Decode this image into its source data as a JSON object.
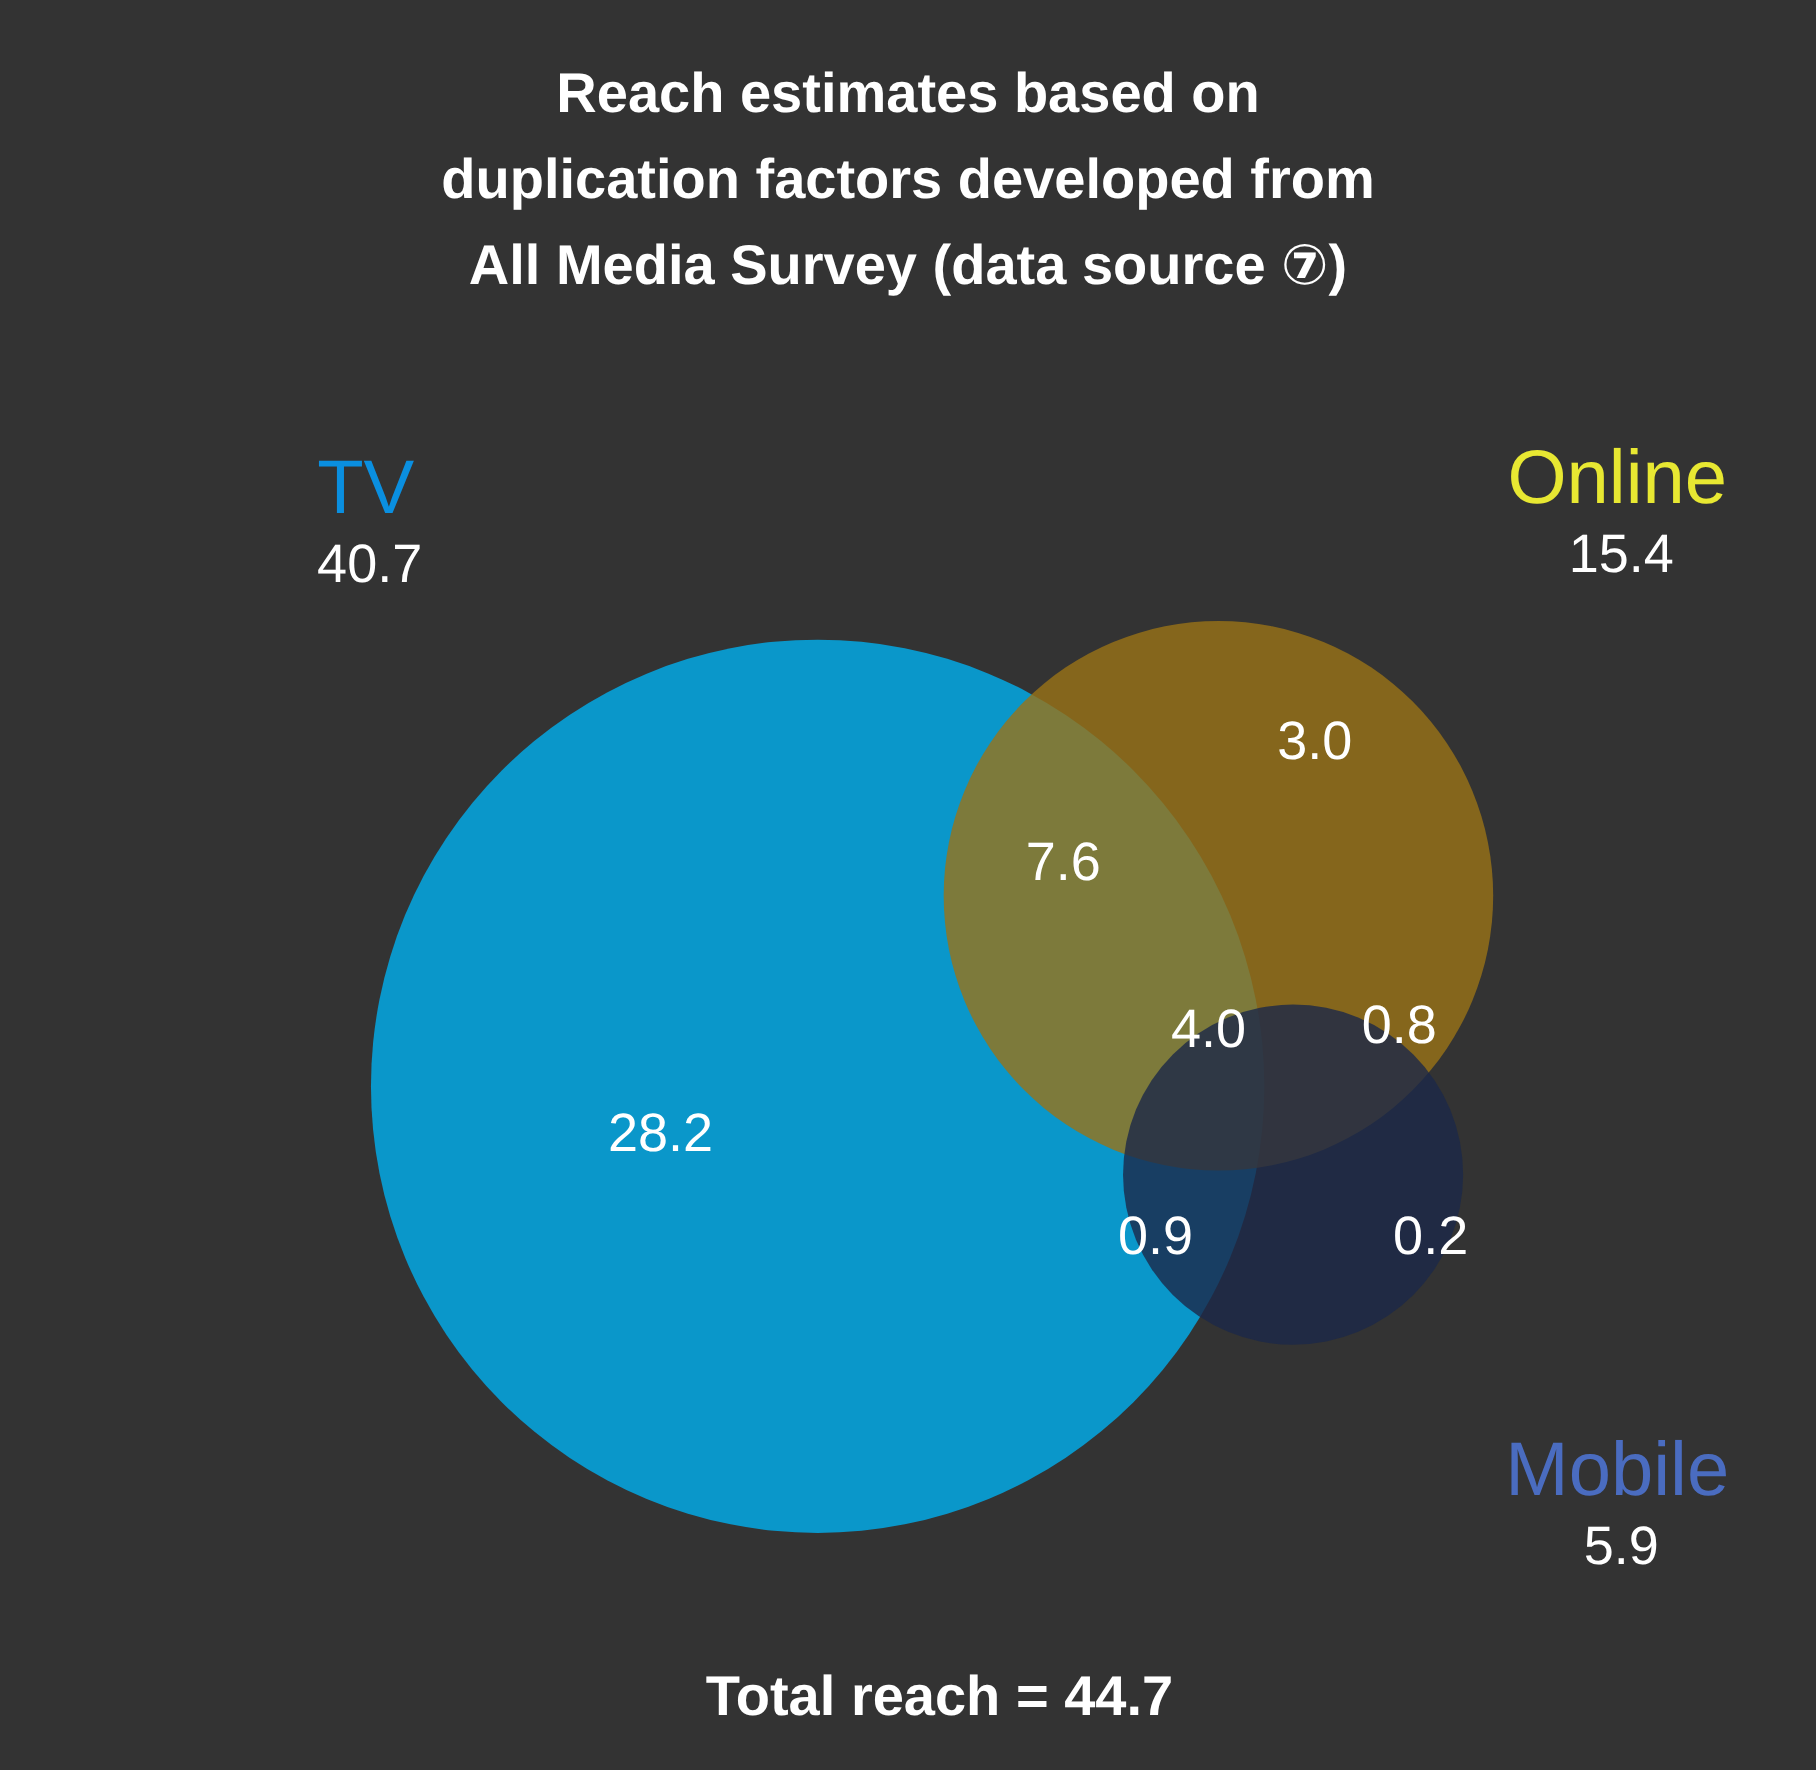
{
  "chart_data": {
    "type": "other",
    "title": "Reach estimates based on\nduplication factors developed from\nAll Media Survey (data source ⑦)",
    "categories": [
      "TV",
      "Online",
      "Mobile"
    ],
    "values": [
      40.7,
      15.4,
      5.9
    ],
    "colors": [
      "#00b0f0",
      "#9a7316",
      "#1b2848"
    ],
    "data_labels": true,
    "annotations": [
      "28.2",
      "3.0",
      "0.2",
      "7.6",
      "0.9",
      "0.8",
      "4.0",
      "Total reach = 44.7"
    ]
  }
}
